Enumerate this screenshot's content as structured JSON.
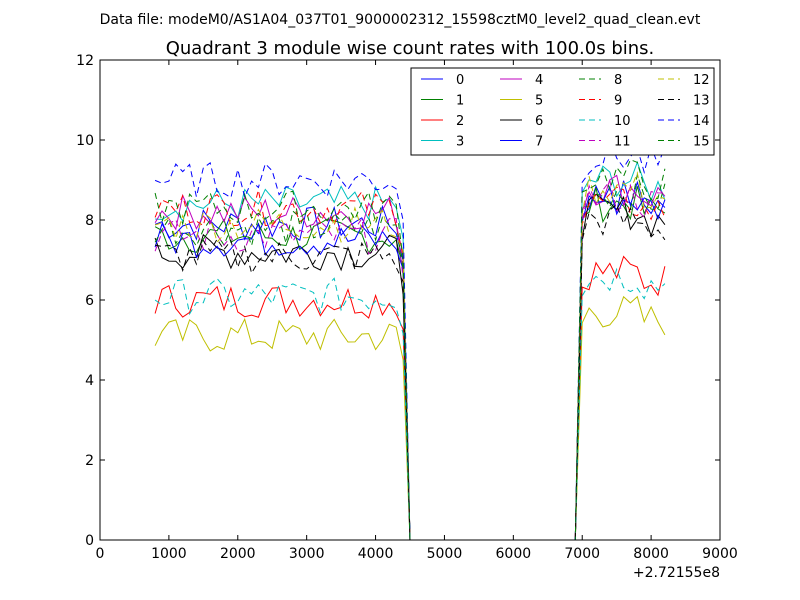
{
  "chart_data": {
    "type": "line",
    "suptitle": "Data file: modeM0/AS1A04_037T01_9000002312_15598cztM0_level2_quad_clean.evt",
    "title": "Quadrant 3 module wise count rates with 100.0s bins.",
    "xlabel": "",
    "ylabel": "",
    "xlim": [
      0,
      9000
    ],
    "ylim": [
      0,
      12
    ],
    "x_ticks": [
      0,
      1000,
      2000,
      3000,
      4000,
      5000,
      6000,
      7000,
      8000,
      9000
    ],
    "x_tick_labels": [
      "0",
      "1000",
      "2000",
      "3000",
      "4000",
      "5000",
      "6000",
      "7000",
      "8000",
      "9000"
    ],
    "y_ticks": [
      0,
      2,
      4,
      6,
      8,
      10,
      12
    ],
    "y_tick_labels": [
      "0",
      "2",
      "4",
      "6",
      "8",
      "10",
      "12"
    ],
    "x_offset_label": "+2.72155e8",
    "grid": false,
    "legend_location": "top-right",
    "legend_columns": 4,
    "x": [
      800,
      900,
      1000,
      1100,
      1200,
      1300,
      1400,
      1500,
      1600,
      1700,
      1800,
      1900,
      2000,
      2100,
      2200,
      2300,
      2400,
      2500,
      2600,
      2700,
      2800,
      2900,
      3000,
      3100,
      3200,
      3300,
      3400,
      3500,
      3600,
      3700,
      3800,
      3900,
      4000,
      4100,
      4200,
      4300,
      4400,
      4500,
      4600,
      4700,
      4800,
      4900,
      5000,
      5100,
      5200,
      5300,
      5400,
      5500,
      5600,
      5700,
      5800,
      5900,
      6000,
      6100,
      6200,
      6300,
      6400,
      6500,
      6600,
      6700,
      6800,
      6900,
      7000,
      7100,
      7200,
      7300,
      7400,
      7500,
      7600,
      7700,
      7800,
      7900,
      8000,
      8100,
      8200
    ],
    "series": [
      {
        "name": "0",
        "color": "#0000ff",
        "dash": "solid",
        "level_pre": 7.9,
        "level_post": 8.6
      },
      {
        "name": "1",
        "color": "#008000",
        "dash": "solid",
        "level_pre": 7.6,
        "level_post": 8.4
      },
      {
        "name": "2",
        "color": "#ff0000",
        "dash": "solid",
        "level_pre": 6.0,
        "level_post": 6.7
      },
      {
        "name": "3",
        "color": "#00bfbf",
        "dash": "solid",
        "level_pre": 8.4,
        "level_post": 9.0
      },
      {
        "name": "4",
        "color": "#bf00bf",
        "dash": "solid",
        "level_pre": 8.2,
        "level_post": 8.8
      },
      {
        "name": "5",
        "color": "#bfbf00",
        "dash": "solid",
        "level_pre": 5.1,
        "level_post": 5.7
      },
      {
        "name": "6",
        "color": "#000000",
        "dash": "solid",
        "level_pre": 7.2,
        "level_post": 8.2
      },
      {
        "name": "7",
        "color": "#0000ff",
        "dash": "solid",
        "level_pre": 7.5,
        "level_post": 8.5
      },
      {
        "name": "8",
        "color": "#008000",
        "dash": "dashed",
        "level_pre": 7.8,
        "level_post": 8.7
      },
      {
        "name": "9",
        "color": "#ff0000",
        "dash": "dashed",
        "level_pre": 8.3,
        "level_post": 8.4
      },
      {
        "name": "10",
        "color": "#00bfbf",
        "dash": "dashed",
        "level_pre": 6.1,
        "level_post": 6.6
      },
      {
        "name": "11",
        "color": "#bf00bf",
        "dash": "dashed",
        "level_pre": 7.6,
        "level_post": 8.6
      },
      {
        "name": "12",
        "color": "#bfbf00",
        "dash": "dashed",
        "level_pre": 7.9,
        "level_post": 8.8
      },
      {
        "name": "13",
        "color": "#000000",
        "dash": "dashed",
        "level_pre": 7.1,
        "level_post": 8.0
      },
      {
        "name": "14",
        "color": "#0000ff",
        "dash": "dashed",
        "level_pre": 9.0,
        "level_post": 9.6
      },
      {
        "name": "15",
        "color": "#008000",
        "dash": "dashed",
        "level_pre": 8.3,
        "level_post": 9.1
      }
    ],
    "note_values": "Each series: ~level_pre for x=800..4400 (dropping near 4400-4500), 0 for x=4500..6900, ~level_post for x=7000..8200; noise added"
  }
}
